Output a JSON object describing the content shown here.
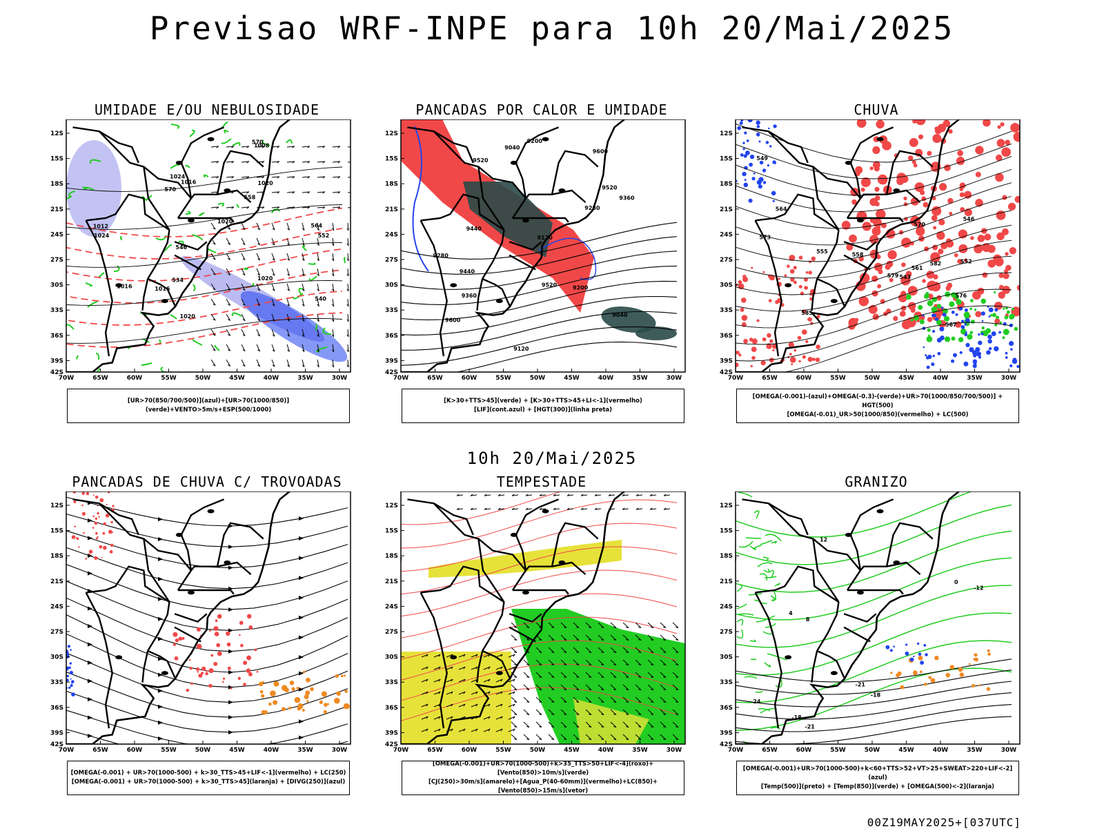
{
  "title": "Previsao WRF-INPE  para 10h 20/Mai/2025",
  "mid_title": "10h 20/Mai/2025",
  "footer": "00Z19MAY2025+[037UTC]",
  "axes": {
    "lat_labels": [
      "12S",
      "15S",
      "18S",
      "21S",
      "24S",
      "27S",
      "30S",
      "33S",
      "36S",
      "39S",
      "42S"
    ],
    "lon_labels": [
      "70W",
      "65W",
      "60W",
      "55W",
      "50W",
      "45W",
      "40W",
      "35W",
      "30W"
    ]
  },
  "colors": {
    "red": "#f04848",
    "green": "#22cc22",
    "blue": "#2244ee",
    "lavender": "#b4b4f0",
    "darkteal": "#2a4a48",
    "yellow": "#e6e23a",
    "orange": "#ee8a22",
    "black": "#000000"
  },
  "panels": [
    {
      "id": "umidade",
      "title": "UMIDADE E/OU NEBULOSIDADE",
      "caption_lines": [
        "[UR>70(850/700/500)](azul)+[UR>70(1000/850)](verde)+VENTO>5m/s+ESP(500/1000)"
      ],
      "contour_labels": [
        "1016",
        "1016",
        "1020",
        "1020",
        "1020",
        "1024",
        "1024",
        "1020",
        "1016",
        "1012",
        "570",
        "570",
        "564",
        "558",
        "552",
        "546",
        "540",
        "534",
        "1008"
      ]
    },
    {
      "id": "pancadas-calor",
      "title": "PANCADAS POR CALOR E UMIDADE",
      "caption_lines": [
        "[K>30+TTS>45](verde) + [K>30+TTS>45+LI<-1](vermelho)",
        "[LIF](cont.azul) + [HGT(300)](linha preta)"
      ],
      "contour_labels": [
        "9600",
        "9600",
        "9520",
        "9520",
        "9520",
        "9440",
        "9440",
        "9360",
        "9360",
        "9280",
        "9280",
        "9200",
        "9200",
        "9120",
        "9120",
        "9040",
        "9040"
      ]
    },
    {
      "id": "chuva",
      "title": "CHUVA",
      "caption_lines": [
        "[OMEGA(-0.001)-(azul)+OMEGA(-0.3)-(verde)+UR>70(1000/850/700/500)] + HGT(500)",
        "[OMEGA(-0.01)_UR>50(1000/850)(vermelho) + LC(500)"
      ],
      "contour_labels": [
        "585",
        "582",
        "579",
        "576",
        "573",
        "570",
        "567",
        "564",
        "561",
        "558",
        "555",
        "552",
        "549",
        "546",
        "543"
      ]
    },
    {
      "id": "trovoadas",
      "title": "PANCADAS DE CHUVA C/ TROVOADAS",
      "caption_lines": [
        "[OMEGA(-0.001) + UR>70(1000-500) + k>30_TTS>45+LIF<-1](vermelho) + LC(250)",
        "[OMEGA(-0.001) + UR>70(1000-500) + k>30_TTS>45](laranja) + [DIVG(250)](azul)"
      ],
      "contour_labels": []
    },
    {
      "id": "tempestade",
      "title": "TEMPESTADE",
      "caption_lines": [
        "[OMEGA(-0.001)+UR>70(1000-500)+k>35_TTS>50+LIF<-4](roxo)+[Vento(850)>10m/s](verde)",
        "[CJ(250)>30m/s](amarelo)+[Agua_P(40-60mm)](vermelho)+LC(850)+[Vento(850)>15m/s](vetor)"
      ],
      "contour_labels": []
    },
    {
      "id": "granizo",
      "title": "GRANIZO",
      "caption_lines": [
        "[OMEGA(-0.001)+UR>70(1000-500)+k<60+TTS>52+VT>25+SWEAT>220+LIF<-2](azul)",
        "[Temp(500)](preto) + [Temp(850)](verde) + [OMEGA(500)<-2](laranja)"
      ],
      "contour_labels": [
        "-12",
        "-18",
        "-21",
        "-18",
        "-21",
        "-24",
        "0",
        "4",
        "8",
        "12"
      ]
    }
  ]
}
